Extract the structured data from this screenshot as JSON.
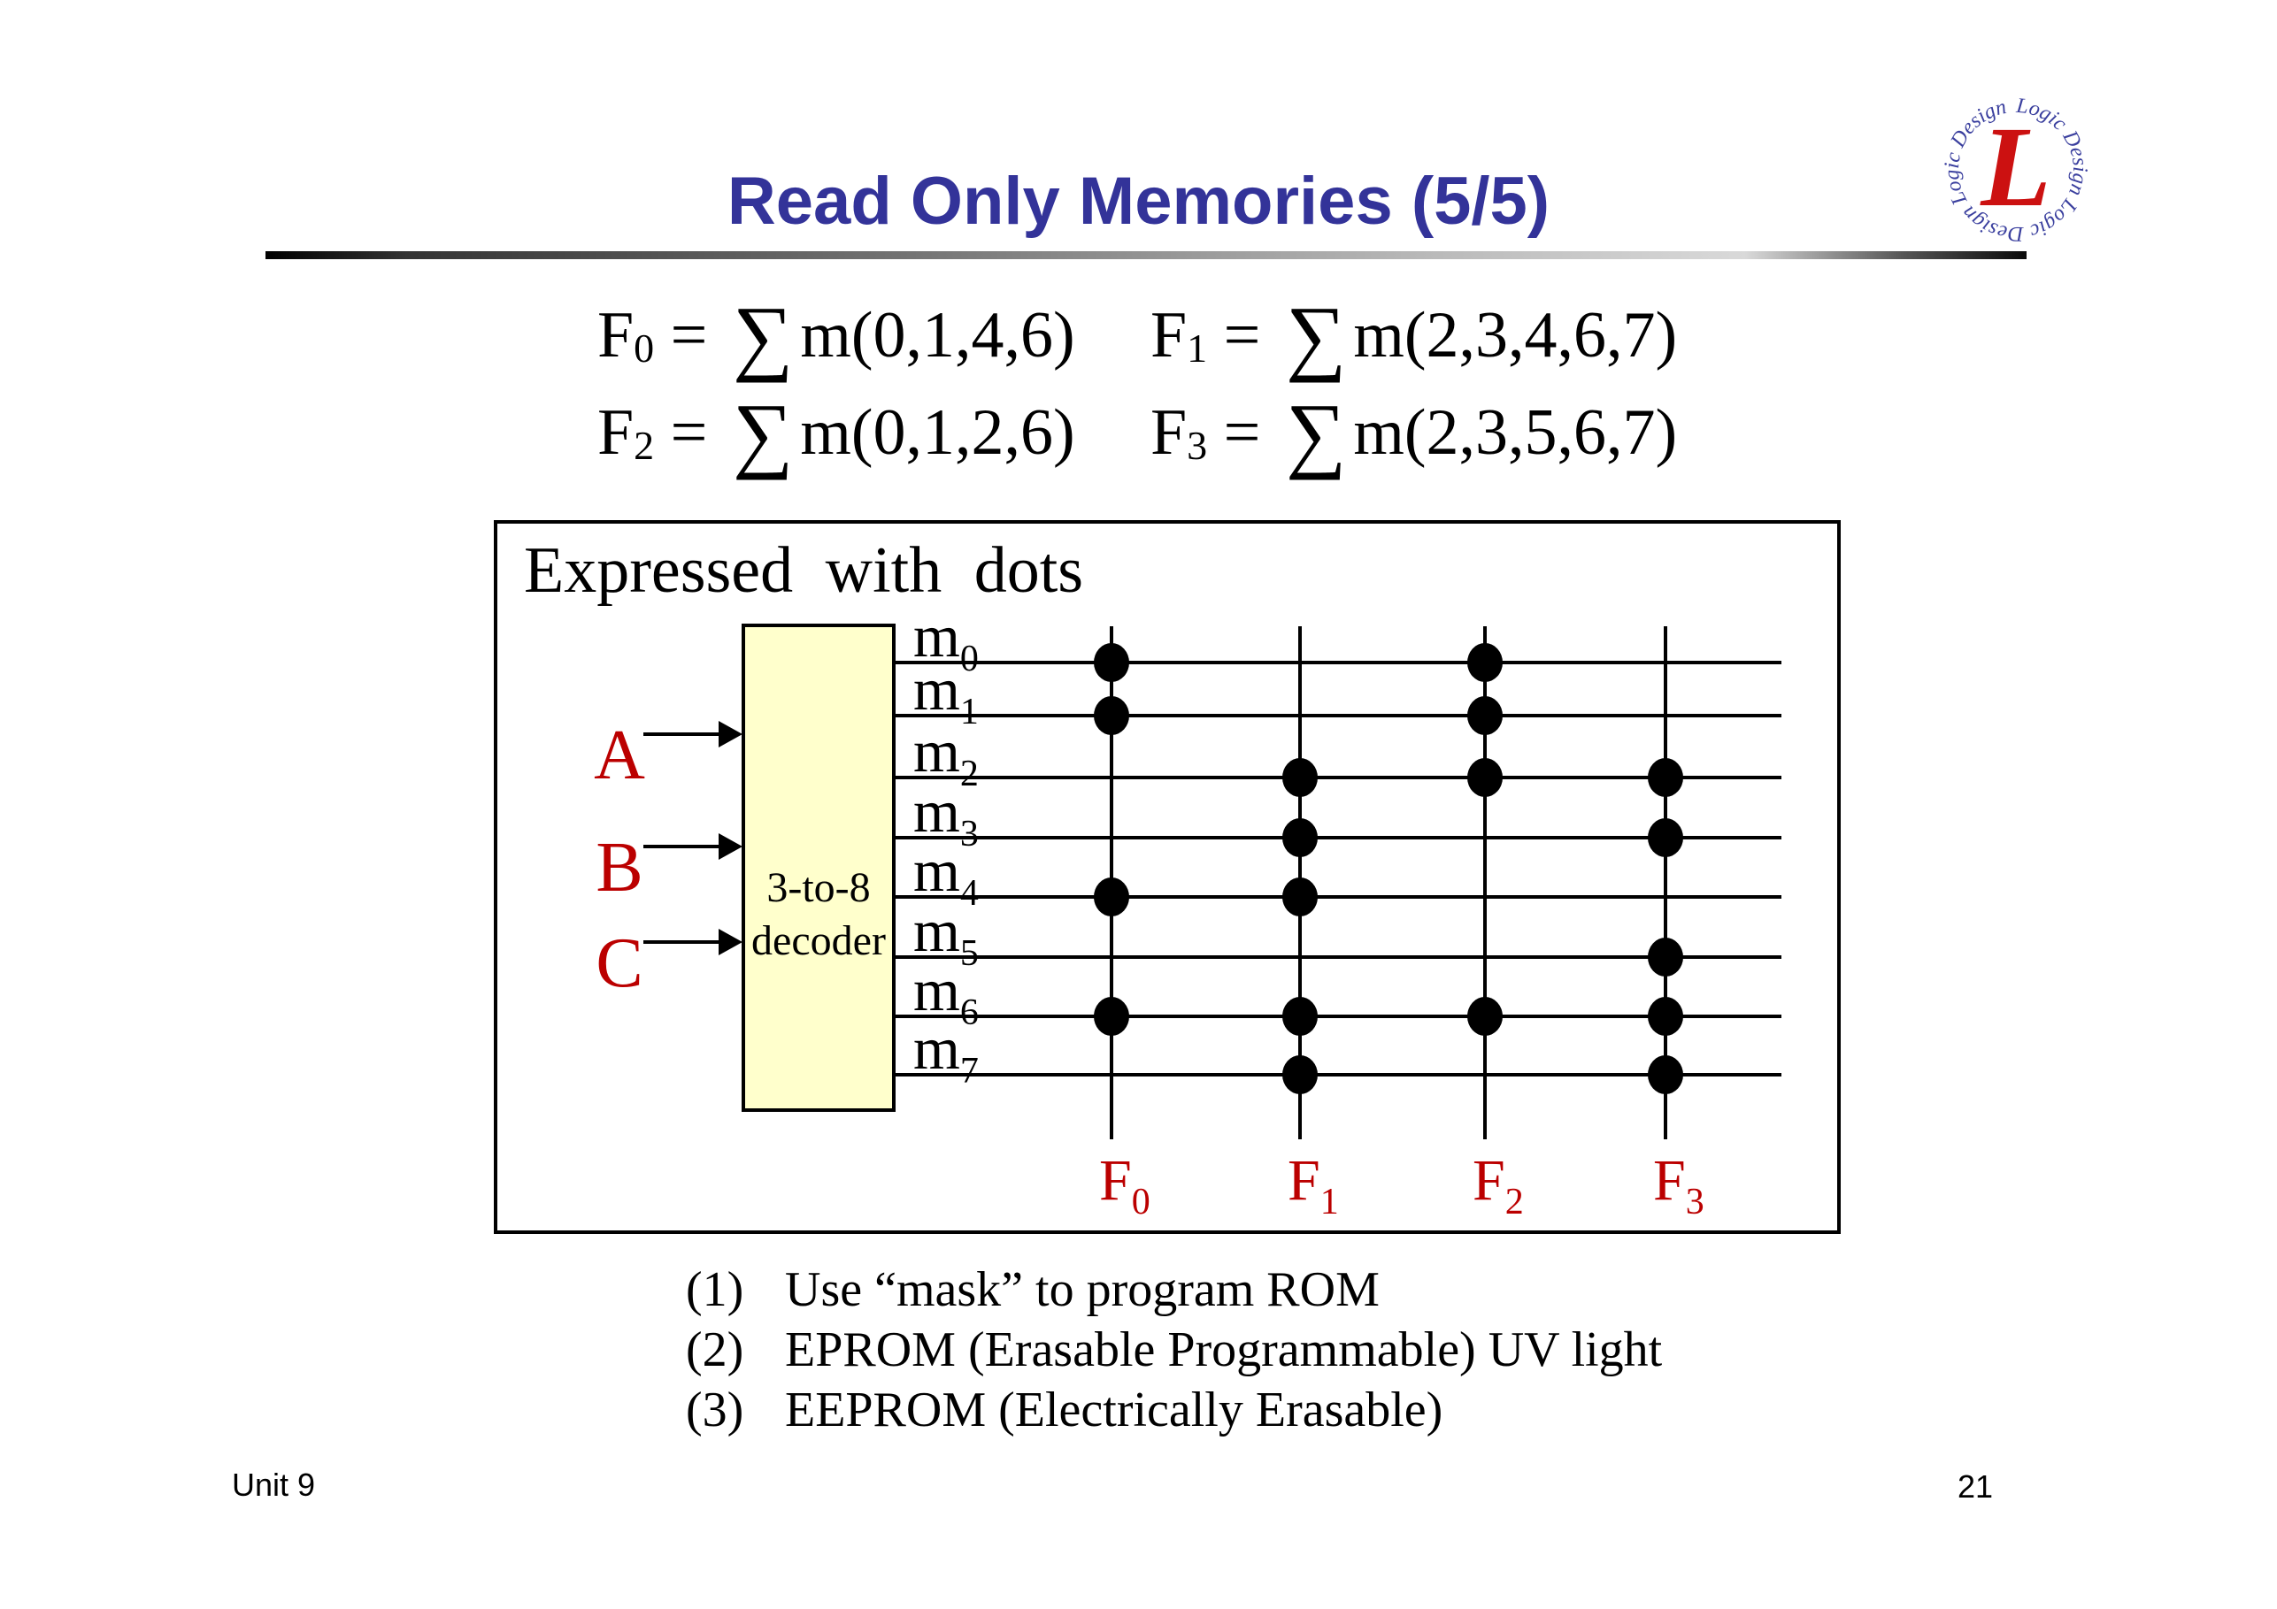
{
  "slide": {
    "title": "Read Only Memories (5/5)",
    "footer_left": "Unit 9",
    "page_number": "21"
  },
  "logo": {
    "ring_text": "Logic Design Logic Design Logic Design ",
    "center_letter": "L",
    "ring_color": "#3a3f9e",
    "letter_color": "#cc1111"
  },
  "equations": [
    {
      "name": "F",
      "sub": "0",
      "body": "m(0,1,4,6)"
    },
    {
      "name": "F",
      "sub": "1",
      "body": "m(2,3,4,6,7)"
    },
    {
      "name": "F",
      "sub": "2",
      "body": "m(0,1,2,6)"
    },
    {
      "name": "F",
      "sub": "3",
      "body": "m(2,3,5,6,7)"
    }
  ],
  "diagram": {
    "caption": "Expressed with dots",
    "decoder_line1": "3-to-8",
    "decoder_line2": "decoder",
    "inputs": [
      "A",
      "B",
      "C"
    ],
    "minterm_rows": [
      {
        "base": "m",
        "sub": "0"
      },
      {
        "base": "m",
        "sub": "1"
      },
      {
        "base": "m",
        "sub": "2"
      },
      {
        "base": "m",
        "sub": "3"
      },
      {
        "base": "m",
        "sub": "4"
      },
      {
        "base": "m",
        "sub": "5"
      },
      {
        "base": "m",
        "sub": "6"
      },
      {
        "base": "m",
        "sub": "7"
      }
    ],
    "outputs": [
      {
        "base": "F",
        "sub": "0",
        "minterms": [
          0,
          1,
          4,
          6
        ]
      },
      {
        "base": "F",
        "sub": "1",
        "minterms": [
          2,
          3,
          4,
          6,
          7
        ]
      },
      {
        "base": "F",
        "sub": "2",
        "minterms": [
          0,
          1,
          2,
          6
        ]
      },
      {
        "base": "F",
        "sub": "3",
        "minterms": [
          2,
          3,
          5,
          6,
          7
        ]
      }
    ]
  },
  "notes": [
    {
      "num": "(1)",
      "text": "Use “mask” to program ROM"
    },
    {
      "num": "(2)",
      "text": "EPROM (Erasable Programmable) UV light"
    },
    {
      "num": "(3)",
      "text": "EEPROM (Electrically Erasable)"
    }
  ],
  "colors": {
    "title_blue": "#333399",
    "accent_red": "#bb0000",
    "decoder_fill": "#ffffcc"
  }
}
